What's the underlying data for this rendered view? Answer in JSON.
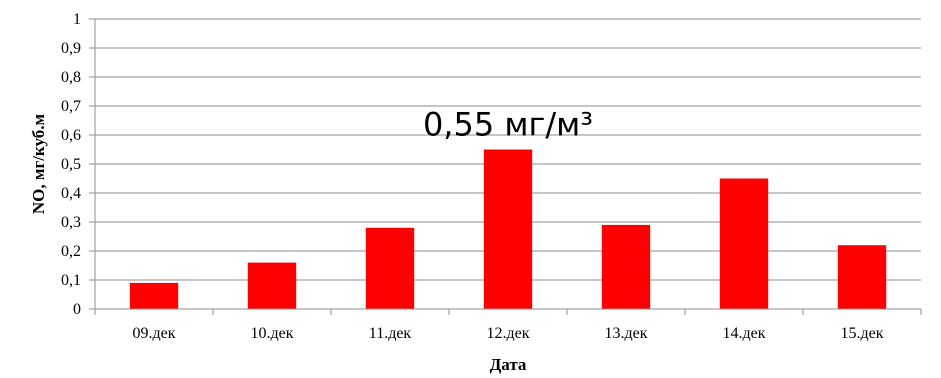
{
  "chart_data": {
    "type": "bar",
    "categories": [
      "09.дек",
      "10.дек",
      "11.дек",
      "12.дек",
      "13.дек",
      "14.дек",
      "15.дек"
    ],
    "values": [
      0.09,
      0.16,
      0.28,
      0.55,
      0.29,
      0.45,
      0.22
    ],
    "xlabel": "Дата",
    "ylabel": "NO, мг/куб.м",
    "ylim": [
      0,
      1
    ],
    "yticks": [
      "0",
      "0,1",
      "0,2",
      "0,3",
      "0,4",
      "0,5",
      "0,6",
      "0,7",
      "0,8",
      "0,9",
      "1"
    ],
    "grid": true,
    "legend": "none",
    "bar_color": "#ff0000",
    "annotation": {
      "text": "0,55 мг/м³",
      "category": "12.дек"
    }
  }
}
